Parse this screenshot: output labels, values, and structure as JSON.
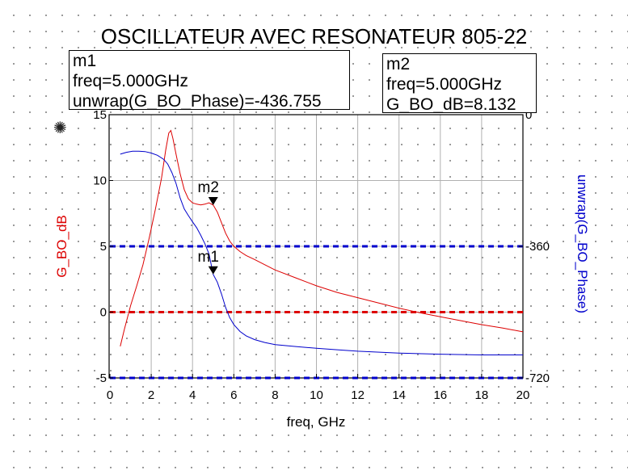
{
  "title": "OSCILLATEUR AVEC RESONATEUR 805-22",
  "markers": {
    "m1": {
      "label": "m1",
      "freq_text": "freq=5.000GHz",
      "value_text": "unwrap(G_BO_Phase)=-436.755",
      "freq": 5.0,
      "value": -436.755,
      "axis": "right"
    },
    "m2": {
      "label": "m2",
      "freq_text": "freq=5.000GHz",
      "value_text": "G_BO_dB=8.132",
      "freq": 5.0,
      "value": 8.132,
      "axis": "left"
    }
  },
  "icon": "crosshair-star-icon",
  "colors": {
    "left_series": "#dd0000",
    "right_series": "#0000cc",
    "limit_left": "#dd0000",
    "limit_right": "#0000cc",
    "grid": "#b0b0b0"
  },
  "chart_data": {
    "type": "line",
    "xlabel": "freq, GHz",
    "ylabel": "G_BO_dB",
    "y2label": "unwrap(G_BO_Phase)",
    "xlim": [
      0,
      20
    ],
    "ylim": [
      -5,
      15
    ],
    "y2lim": [
      -720,
      0
    ],
    "x_ticks": [
      "0",
      "2",
      "4",
      "6",
      "8",
      "10",
      "12",
      "14",
      "16",
      "18",
      "20"
    ],
    "y_ticks": [
      "-5",
      "0",
      "5",
      "10",
      "15"
    ],
    "y2_ticks": [
      "-720",
      "-360",
      "0"
    ],
    "grid": true,
    "series": [
      {
        "name": "G_BO_dB",
        "axis": "left",
        "x": [
          0.5,
          0.7,
          1.0,
          1.3,
          1.6,
          1.9,
          2.2,
          2.5,
          2.7,
          2.85,
          2.95,
          3.05,
          3.2,
          3.4,
          3.6,
          3.8,
          4.0,
          4.2,
          4.4,
          4.6,
          4.8,
          5.0,
          5.2,
          5.4,
          5.6,
          5.8,
          6.0,
          6.3,
          6.6,
          7.0,
          7.5,
          8.0,
          9.0,
          10.0,
          11.0,
          12.0,
          13.0,
          14.0,
          15.0,
          16.0,
          17.0,
          18.0,
          19.0,
          20.0
        ],
        "values": [
          -2.6,
          -1.3,
          0.5,
          2.0,
          3.6,
          5.6,
          7.8,
          10.2,
          12.3,
          13.6,
          13.8,
          13.2,
          12.0,
          10.5,
          9.3,
          8.6,
          8.3,
          8.2,
          8.15,
          8.2,
          8.3,
          8.132,
          7.6,
          6.8,
          6.0,
          5.4,
          5.0,
          4.6,
          4.3,
          4.0,
          3.6,
          3.2,
          2.6,
          2.0,
          1.5,
          1.1,
          0.7,
          0.3,
          -0.05,
          -0.35,
          -0.65,
          -0.95,
          -1.2,
          -1.5
        ]
      },
      {
        "name": "unwrap(G_BO_Phase)",
        "axis": "right",
        "x": [
          0.5,
          0.8,
          1.1,
          1.4,
          1.7,
          2.0,
          2.3,
          2.6,
          2.8,
          3.0,
          3.2,
          3.4,
          3.6,
          3.8,
          4.0,
          4.2,
          4.4,
          4.6,
          4.8,
          5.0,
          5.2,
          5.4,
          5.6,
          5.8,
          6.0,
          6.3,
          6.6,
          7.0,
          7.5,
          8.0,
          9.0,
          10.0,
          11.0,
          12.0,
          14.0,
          16.0,
          18.0,
          20.0
        ],
        "values": [
          -108,
          -103,
          -100,
          -100,
          -101,
          -105,
          -111,
          -122,
          -135,
          -158,
          -188,
          -228,
          -258,
          -276,
          -293,
          -309,
          -330,
          -353,
          -381,
          -436.755,
          -458,
          -490,
          -527,
          -555,
          -574,
          -593,
          -605,
          -615,
          -623,
          -629,
          -634,
          -639,
          -643,
          -647,
          -652,
          -655,
          -657,
          -657
        ]
      },
      {
        "name": "",
        "axis": "left",
        "style": "dashed",
        "x": [
          0,
          20
        ],
        "values": [
          0,
          0
        ]
      },
      {
        "name": "",
        "axis": "right",
        "style": "dashed",
        "x": [
          0,
          20
        ],
        "values": [
          -360,
          -360
        ]
      },
      {
        "name": "",
        "axis": "right",
        "style": "dashed",
        "x": [
          0,
          20
        ],
        "values": [
          -720,
          -720
        ]
      }
    ]
  }
}
